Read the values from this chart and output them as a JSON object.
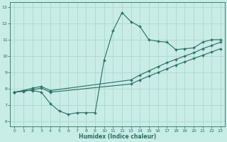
{
  "xlabel": "Humidex (Indice chaleur)",
  "xlim": [
    -0.5,
    23.5
  ],
  "ylim": [
    5.7,
    13.3
  ],
  "xticks": [
    0,
    1,
    2,
    3,
    4,
    5,
    6,
    7,
    8,
    9,
    10,
    11,
    12,
    13,
    14,
    15,
    16,
    17,
    18,
    19,
    20,
    21,
    22,
    23
  ],
  "yticks": [
    6,
    7,
    8,
    9,
    10,
    11,
    12,
    13
  ],
  "bg_color": "#c8ece6",
  "line_color": "#2a6e63",
  "grid_color": "#a8d4cc",
  "line1_x": [
    0,
    1,
    2,
    3,
    4,
    5,
    6,
    7,
    8,
    9,
    10,
    11,
    12,
    13,
    14,
    15,
    16,
    17,
    18,
    19,
    20,
    21,
    22,
    23
  ],
  "line1_y": [
    7.8,
    7.9,
    7.9,
    7.8,
    7.1,
    6.65,
    6.45,
    6.55,
    6.55,
    6.55,
    9.75,
    11.55,
    12.65,
    12.1,
    11.8,
    11.0,
    10.9,
    10.85,
    10.4,
    10.45,
    10.5,
    10.85,
    11.0,
    11.0
  ],
  "line2_x": [
    0,
    1,
    2,
    3,
    4,
    13,
    14,
    15,
    16,
    17,
    18,
    19,
    20,
    21,
    22,
    23
  ],
  "line2_y": [
    7.8,
    7.9,
    8.05,
    8.15,
    7.9,
    8.55,
    8.85,
    9.1,
    9.35,
    9.6,
    9.8,
    10.0,
    10.2,
    10.45,
    10.65,
    10.85
  ],
  "line3_x": [
    0,
    1,
    2,
    3,
    4,
    13,
    14,
    15,
    16,
    17,
    18,
    19,
    20,
    21,
    22,
    23
  ],
  "line3_y": [
    7.8,
    7.85,
    7.95,
    8.05,
    7.8,
    8.3,
    8.55,
    8.78,
    9.0,
    9.22,
    9.45,
    9.65,
    9.85,
    10.05,
    10.25,
    10.45
  ]
}
